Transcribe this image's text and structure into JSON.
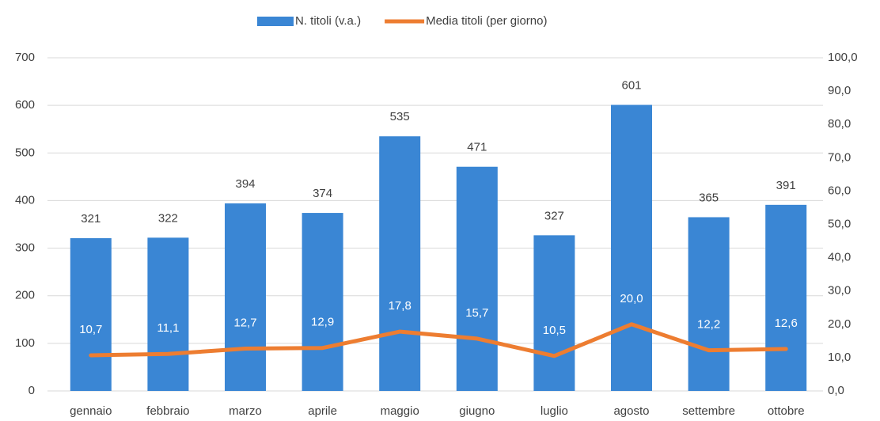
{
  "chart_data": {
    "type": "bar-line",
    "categories": [
      "gennaio",
      "febbraio",
      "marzo",
      "aprile",
      "maggio",
      "giugno",
      "luglio",
      "agosto",
      "settembre",
      "ottobre"
    ],
    "series": [
      {
        "name": "N. titoli (v.a.)",
        "type": "bar",
        "color": "#3a86d4",
        "values": [
          321,
          322,
          394,
          374,
          535,
          471,
          327,
          601,
          365,
          391
        ]
      },
      {
        "name": "Media titoli (per giorno)",
        "type": "line",
        "axis": "y2",
        "color": "#ed7d31",
        "values": [
          10.7,
          11.1,
          12.7,
          12.9,
          17.8,
          15.7,
          10.5,
          20.0,
          12.2,
          12.6
        ],
        "value_labels": [
          "10,7",
          "11,1",
          "12,7",
          "12,9",
          "17,8",
          "15,7",
          "10,5",
          "20,0",
          "12,2",
          "12,6"
        ]
      }
    ],
    "ylim": [
      0,
      700
    ],
    "yticks": [
      0,
      100,
      200,
      300,
      400,
      500,
      600,
      700
    ],
    "y2lim": [
      0,
      100
    ],
    "y2ticks": [
      {
        "value": 0,
        "label": "0,0"
      },
      {
        "value": 10,
        "label": "10,0"
      },
      {
        "value": 20,
        "label": "20,0"
      },
      {
        "value": 30,
        "label": "30,0"
      },
      {
        "value": 40,
        "label": "40,0"
      },
      {
        "value": 50,
        "label": "50,0"
      },
      {
        "value": 60,
        "label": "60,0"
      },
      {
        "value": 70,
        "label": "70,0"
      },
      {
        "value": 80,
        "label": "80,0"
      },
      {
        "value": 90,
        "label": "90,0"
      },
      {
        "value": 100,
        "label": "100,0"
      }
    ],
    "grid": true,
    "legend": "top"
  }
}
